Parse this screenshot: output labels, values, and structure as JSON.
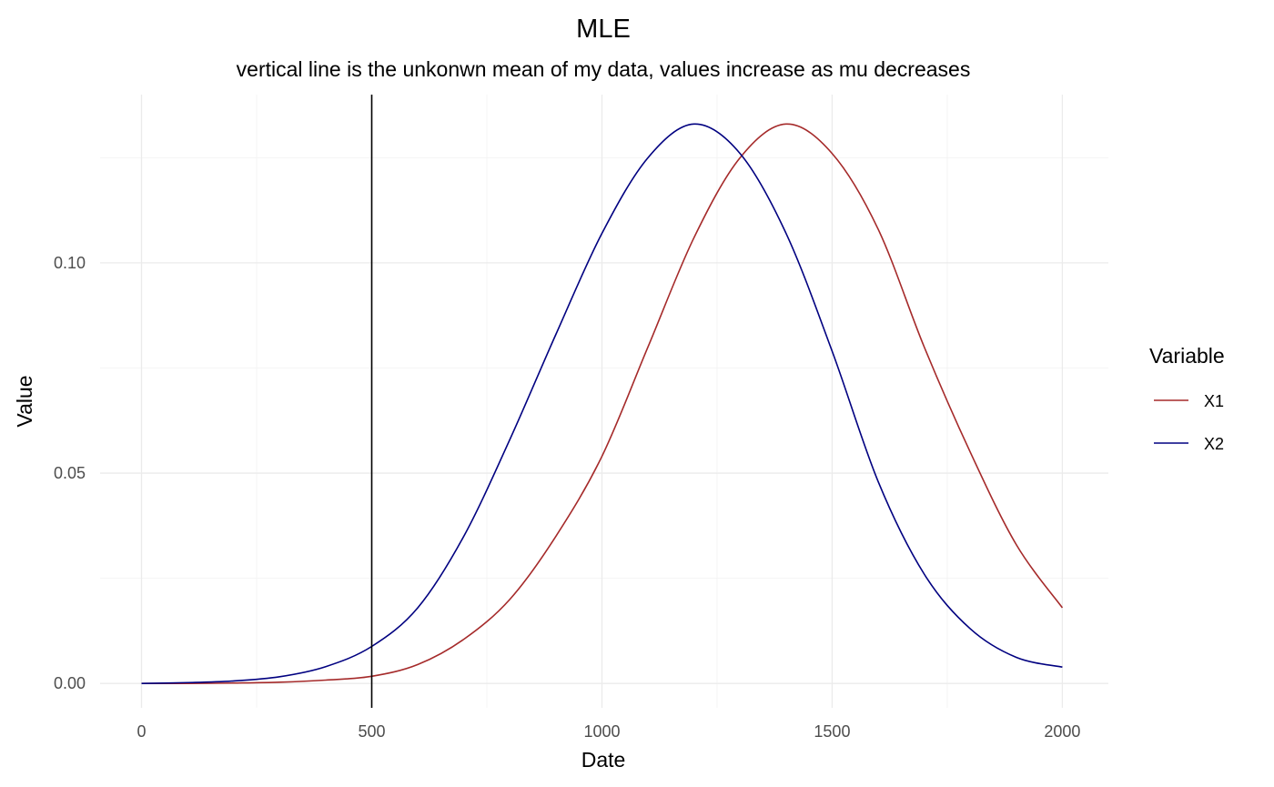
{
  "chart_data": {
    "type": "line",
    "title": "MLE",
    "subtitle": "vertical line is the unkonwn mean of my data, values increase as mu decreases",
    "xlabel": "Date",
    "ylabel": "Value",
    "xlim": [
      -90,
      2100
    ],
    "ylim": [
      -0.0058,
      0.14
    ],
    "xticks": [
      0,
      500,
      1000,
      1500,
      2000
    ],
    "xtick_labels": [
      "0",
      "500",
      "1000",
      "1500",
      "2000"
    ],
    "xminor": [
      250,
      750,
      1250,
      1750
    ],
    "yticks": [
      0.0,
      0.05,
      0.1
    ],
    "ytick_labels": [
      "0.00",
      "0.05",
      "0.10"
    ],
    "yminor": [
      0.025,
      0.075,
      0.125
    ],
    "grid": true,
    "legend": {
      "title": "Variable",
      "position": "right"
    },
    "vline": {
      "x": 500,
      "color": "#000000"
    },
    "series": [
      {
        "name": "X1",
        "color": "#A52A2A",
        "x": [
          0,
          100,
          200,
          300,
          400,
          500,
          600,
          700,
          800,
          900,
          1000,
          1100,
          1200,
          1300,
          1400,
          1500,
          1600,
          1700,
          1800,
          1900,
          2000
        ],
        "y": [
          0.0,
          0.0,
          0.0001,
          0.0003,
          0.0008,
          0.0017,
          0.0045,
          0.0105,
          0.02,
          0.035,
          0.054,
          0.08,
          0.106,
          0.125,
          0.133,
          0.126,
          0.108,
          0.08,
          0.055,
          0.033,
          0.018
        ]
      },
      {
        "name": "X2",
        "color": "#000080",
        "x": [
          0,
          100,
          200,
          300,
          400,
          500,
          600,
          700,
          800,
          900,
          1000,
          1100,
          1200,
          1300,
          1400,
          1500,
          1600,
          1700,
          1800,
          1900,
          2000
        ],
        "y": [
          0.0,
          0.0002,
          0.0006,
          0.0016,
          0.004,
          0.0088,
          0.018,
          0.035,
          0.058,
          0.083,
          0.107,
          0.125,
          0.133,
          0.126,
          0.107,
          0.079,
          0.048,
          0.026,
          0.013,
          0.0062,
          0.0039
        ]
      }
    ]
  }
}
